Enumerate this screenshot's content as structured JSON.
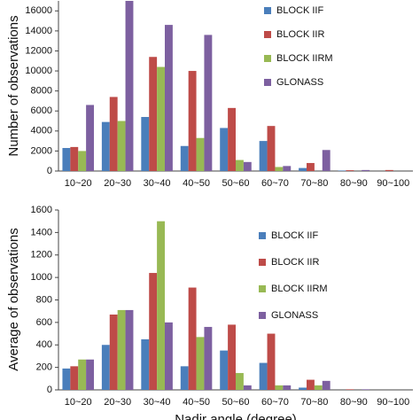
{
  "chart_data": [
    {
      "type": "bar",
      "ylabel": "Number of observations",
      "categories": [
        "10~20",
        "20~30",
        "30~40",
        "40~50",
        "50~60",
        "60~70",
        "70~80",
        "80~90",
        "90~100"
      ],
      "series": [
        {
          "name": "BLOCK IIF",
          "color": "#4a7ebb",
          "values": [
            2300,
            4900,
            5400,
            2500,
            4300,
            3000,
            300,
            50,
            0
          ]
        },
        {
          "name": "BLOCK IIR",
          "color": "#be4b48",
          "values": [
            2400,
            7400,
            11400,
            10000,
            6300,
            4500,
            800,
            80,
            100
          ]
        },
        {
          "name": "BLOCK IIRM",
          "color": "#98b954",
          "values": [
            2000,
            5000,
            10400,
            3300,
            1100,
            400,
            0,
            0,
            0
          ]
        },
        {
          "name": "GLONASS",
          "color": "#7d60a0",
          "values": [
            6600,
            17000,
            14600,
            13600,
            900,
            500,
            2100,
            100,
            0
          ]
        }
      ],
      "ylim": [
        0,
        17000
      ],
      "yticks": [
        0,
        2000,
        4000,
        6000,
        8000,
        10000,
        12000,
        14000,
        16000
      ],
      "grid": false,
      "legend": "top-right"
    },
    {
      "type": "bar",
      "ylabel": "Average of observations",
      "xlabel": "Nadir angle (degree)",
      "categories": [
        "10~20",
        "20~30",
        "30~40",
        "40~50",
        "50~60",
        "60~70",
        "70~80",
        "80~90",
        "90~100"
      ],
      "series": [
        {
          "name": "BLOCK IIF",
          "color": "#4a7ebb",
          "values": [
            190,
            400,
            450,
            210,
            350,
            240,
            20,
            0,
            0
          ]
        },
        {
          "name": "BLOCK IIR",
          "color": "#be4b48",
          "values": [
            210,
            670,
            1040,
            910,
            580,
            500,
            90,
            5,
            0
          ]
        },
        {
          "name": "BLOCK IIRM",
          "color": "#98b954",
          "values": [
            270,
            710,
            1500,
            470,
            150,
            40,
            40,
            0,
            0
          ]
        },
        {
          "name": "GLONASS",
          "color": "#7d60a0",
          "values": [
            270,
            710,
            600,
            560,
            40,
            40,
            80,
            5,
            0
          ]
        }
      ],
      "ylim": [
        0,
        1600
      ],
      "yticks": [
        0,
        200,
        400,
        600,
        800,
        1000,
        1200,
        1400,
        1600
      ],
      "grid": false,
      "legend": "top-right"
    }
  ]
}
